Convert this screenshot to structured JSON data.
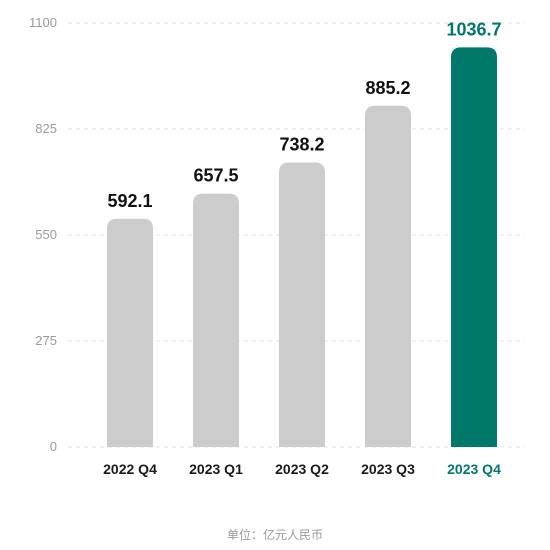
{
  "chart_data": {
    "type": "bar",
    "categories": [
      "2022 Q4",
      "2023 Q1",
      "2023 Q2",
      "2023 Q3",
      "2023 Q4"
    ],
    "values": [
      592.1,
      657.5,
      738.2,
      885.2,
      1036.7
    ],
    "value_labels": [
      "592.1",
      "657.5",
      "738.2",
      "885.2",
      "1036.7"
    ],
    "yticks": [
      "0",
      "275",
      "550",
      "825",
      "1100"
    ],
    "ylim": [
      0,
      1100
    ],
    "grid": true,
    "highlight_index": 4,
    "colors": {
      "bar": "#cccccc",
      "highlight": "#00786a",
      "grid": "#e3e3e3"
    },
    "unit_note": "单位：亿元人民币"
  }
}
